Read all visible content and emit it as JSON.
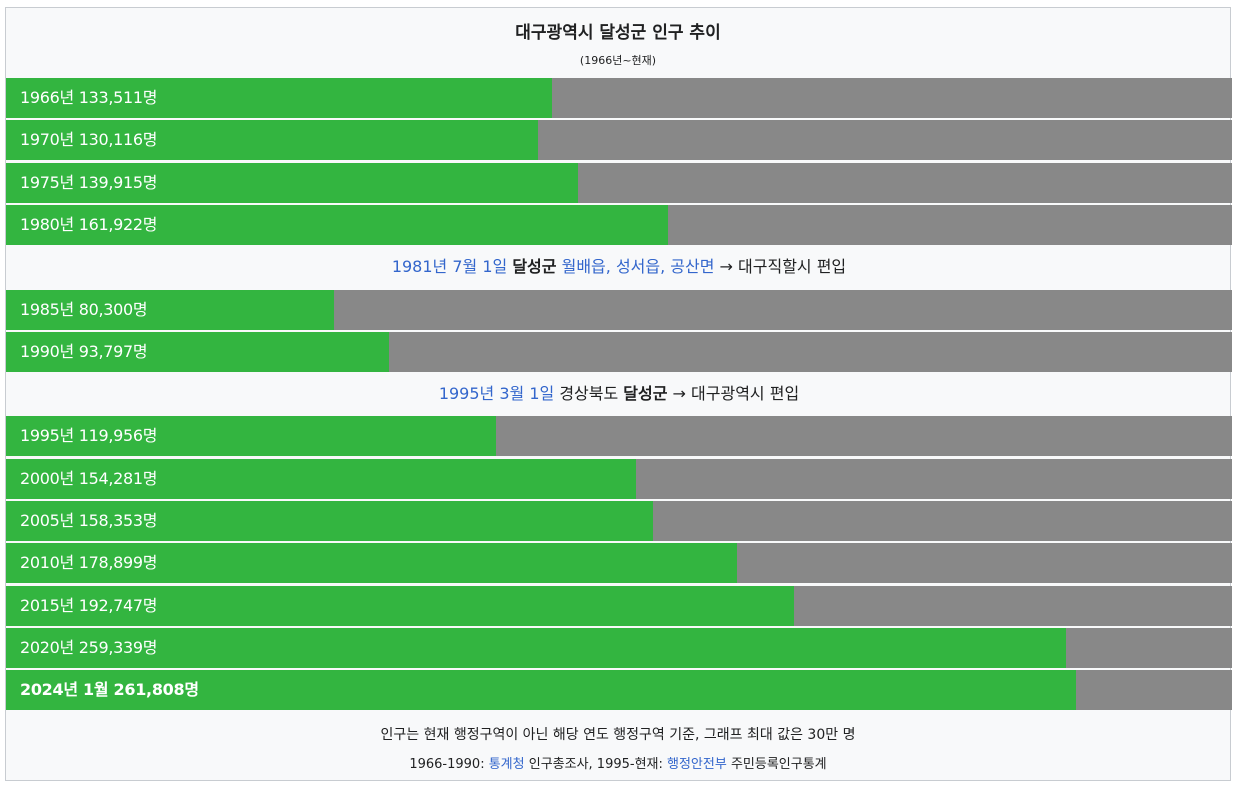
{
  "chart_data": {
    "type": "bar",
    "orientation": "horizontal",
    "title": "대구광역시 달성군 인구 추이",
    "subtitle": "(1966년~현재)",
    "xlim": [
      0,
      300000
    ],
    "colors": {
      "bar": "#33b540",
      "track": "#888888"
    },
    "bars": [
      {
        "label": "1966년 133,511명",
        "value": 133511
      },
      {
        "label": "1970년 130,116명",
        "value": 130116
      },
      {
        "label": "1975년 139,915명",
        "value": 139915
      },
      {
        "label": "1980년 161,922명",
        "value": 161922
      },
      {
        "note": [
          {
            "text": "1981년 7월 1일",
            "style": "link"
          },
          {
            "text": " "
          },
          {
            "text": "달성군",
            "style": "bold"
          },
          {
            "text": " "
          },
          {
            "text": "월배읍",
            "style": "link"
          },
          {
            "text": ", ",
            "style": "link"
          },
          {
            "text": "성서읍",
            "style": "link"
          },
          {
            "text": ", ",
            "style": "link"
          },
          {
            "text": "공산면",
            "style": "link"
          },
          {
            "text": " → 대구직할시 편입"
          }
        ]
      },
      {
        "label": "1985년 80,300명",
        "value": 80300
      },
      {
        "label": "1990년 93,797명",
        "value": 93797
      },
      {
        "note": [
          {
            "text": "1995년 3월 1일",
            "style": "link"
          },
          {
            "text": " 경상북도 "
          },
          {
            "text": "달성군",
            "style": "bold"
          },
          {
            "text": " → 대구광역시 편입"
          }
        ]
      },
      {
        "label": "1995년 119,956명",
        "value": 119956
      },
      {
        "label": "2000년 154,281명",
        "value": 154281
      },
      {
        "label": "2005년 158,353명",
        "value": 158353
      },
      {
        "label": "2010년 178,899명",
        "value": 178899
      },
      {
        "label": "2015년 192,747명",
        "value": 192747
      },
      {
        "label": "2020년 259,339명",
        "value": 259339
      },
      {
        "label": "2024년 1월 261,808명",
        "value": 261808,
        "bold": true
      }
    ]
  },
  "footer": {
    "line1": "인구는 현재 행정구역이 아닌 해당 연도 행정구역 기준, 그래프 최대 값은 30만 명",
    "line2": [
      {
        "text": "1966-1990: "
      },
      {
        "text": "통계청",
        "style": "link"
      },
      {
        "text": " 인구총조사, 1995-현재: "
      },
      {
        "text": "행정안전부",
        "style": "link"
      },
      {
        "text": " 주민등록인구통계"
      }
    ]
  }
}
